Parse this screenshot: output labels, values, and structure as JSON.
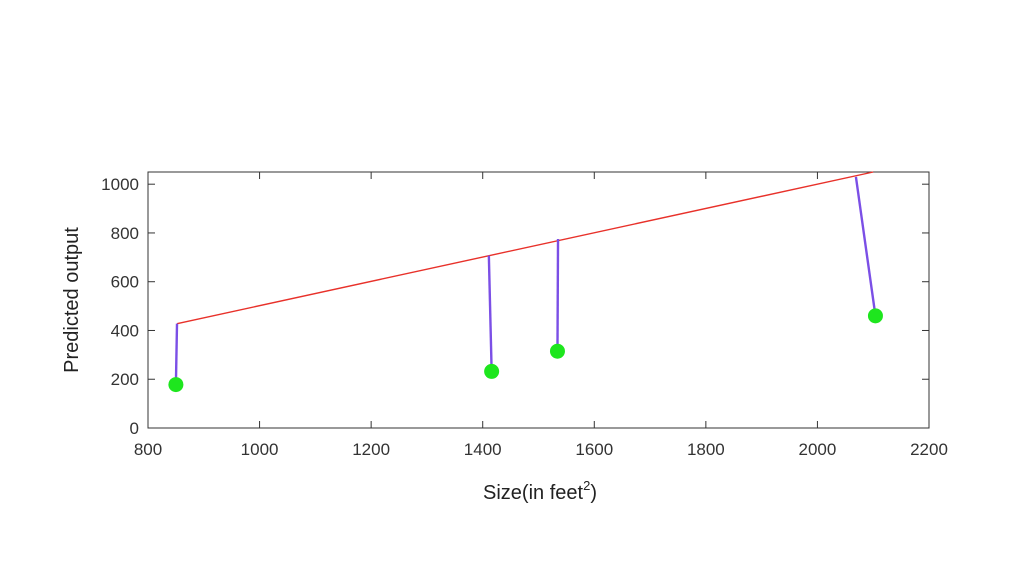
{
  "chart_data": {
    "type": "scatter",
    "title": "",
    "xlabel": "Size(in feet",
    "xlabel_superscript": "2",
    "xlabel_suffix": ")",
    "ylabel": "Predicted output",
    "xlim": [
      800,
      2200
    ],
    "ylim": [
      0,
      1050
    ],
    "xticks": [
      800,
      1000,
      1200,
      1400,
      1600,
      1800,
      2000,
      2200
    ],
    "yticks": [
      0,
      200,
      400,
      600,
      800,
      1000
    ],
    "grid": false,
    "fit_line": {
      "x": [
        852,
        2100
      ],
      "y": [
        428,
        1050
      ],
      "color": "#e8312a"
    },
    "points": [
      {
        "x": 850,
        "y": 178
      },
      {
        "x": 1416,
        "y": 232
      },
      {
        "x": 1534,
        "y": 315
      },
      {
        "x": 2104,
        "y": 460
      }
    ],
    "residuals": [
      {
        "x1": 852,
        "y1": 428,
        "x2": 850,
        "y2": 178
      },
      {
        "x1": 1411,
        "y1": 707,
        "x2": 1416,
        "y2": 232
      },
      {
        "x1": 1535,
        "y1": 775,
        "x2": 1534,
        "y2": 315
      },
      {
        "x1": 2069,
        "y1": 1030,
        "x2": 2104,
        "y2": 460
      }
    ],
    "colors": {
      "points": "#1ee61e",
      "residuals": "#7b4fe6",
      "axes": "#333333"
    }
  }
}
